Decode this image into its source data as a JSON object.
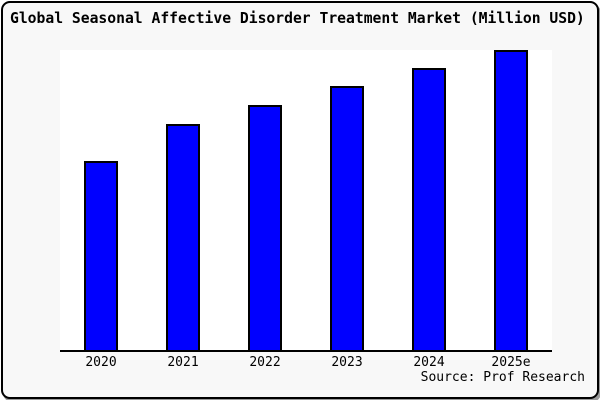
{
  "title": "Global Seasonal Affective Disorder Treatment Market (Million USD)",
  "source": "Source: Prof Research",
  "colors": {
    "bar_fill": "#0000ff",
    "bar_border": "#000000",
    "plot_background": "#ffffff",
    "frame_background": "#f8f8f8",
    "frame_border": "#000000",
    "text": "#000000"
  },
  "chart_data": {
    "type": "bar",
    "title": "Global Seasonal Affective Disorder Treatment Market (Million USD)",
    "categories": [
      "2020",
      "2021",
      "2022",
      "2023",
      "2024",
      "2025e"
    ],
    "values": [
      190,
      227,
      246,
      265,
      283,
      301
    ],
    "value_units": "relative bar height in pixels (y-axis has no tick labels)",
    "xlabel": "",
    "ylabel": "",
    "ylim": [
      0,
      302
    ],
    "grid": false,
    "legend": false,
    "y_axis_visible": false,
    "x_axis_visible": true,
    "annotations": [
      "Source: Prof Research"
    ]
  }
}
